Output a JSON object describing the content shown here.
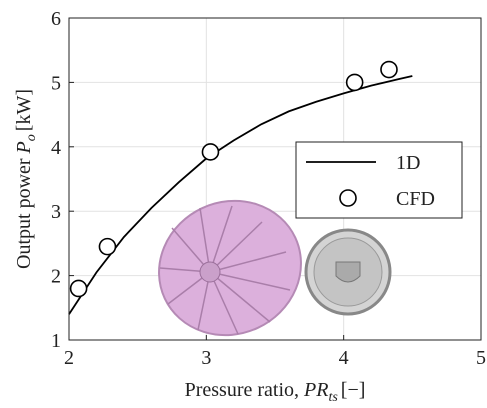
{
  "chart_data": {
    "type": "line",
    "xlabel": {
      "text": "Pressure ratio, ",
      "symbol": "PR",
      "subscript": "ts",
      "unit": "[−]"
    },
    "ylabel": {
      "text": "Output power ",
      "symbol": "P",
      "subscript": "o",
      "unit": "[kW]"
    },
    "xlim": [
      2,
      5
    ],
    "ylim": [
      1,
      6
    ],
    "xticks": [
      2,
      3,
      4,
      5
    ],
    "yticks": [
      1,
      2,
      3,
      4,
      5,
      6
    ],
    "grid": true,
    "legend": "right",
    "series": [
      {
        "name": "1D",
        "type": "line",
        "color": "#000000",
        "x": [
          2.0,
          2.2,
          2.4,
          2.6,
          2.8,
          3.0,
          3.2,
          3.4,
          3.6,
          3.8,
          4.0,
          4.2,
          4.4,
          4.5
        ],
        "values": [
          1.4,
          2.05,
          2.6,
          3.05,
          3.45,
          3.82,
          4.1,
          4.35,
          4.55,
          4.7,
          4.83,
          4.95,
          5.05,
          5.1
        ]
      },
      {
        "name": "CFD",
        "type": "scatter",
        "color": "#000000",
        "x": [
          2.07,
          2.28,
          3.03,
          4.08,
          4.33
        ],
        "values": [
          1.8,
          2.45,
          3.92,
          5.0,
          5.2
        ]
      }
    ]
  }
}
